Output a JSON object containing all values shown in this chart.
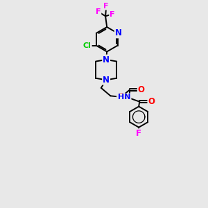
{
  "background_color": "#e8e8e8",
  "figsize": [
    3.0,
    3.0
  ],
  "dpi": 100,
  "atom_colors": {
    "C": "#000000",
    "N": "#0000ff",
    "O": "#ff0000",
    "F": "#ff00ff",
    "Cl": "#00cc00",
    "H": "#888888"
  },
  "bond_color": "#000000",
  "bond_width": 1.4,
  "font_size": 8.0
}
